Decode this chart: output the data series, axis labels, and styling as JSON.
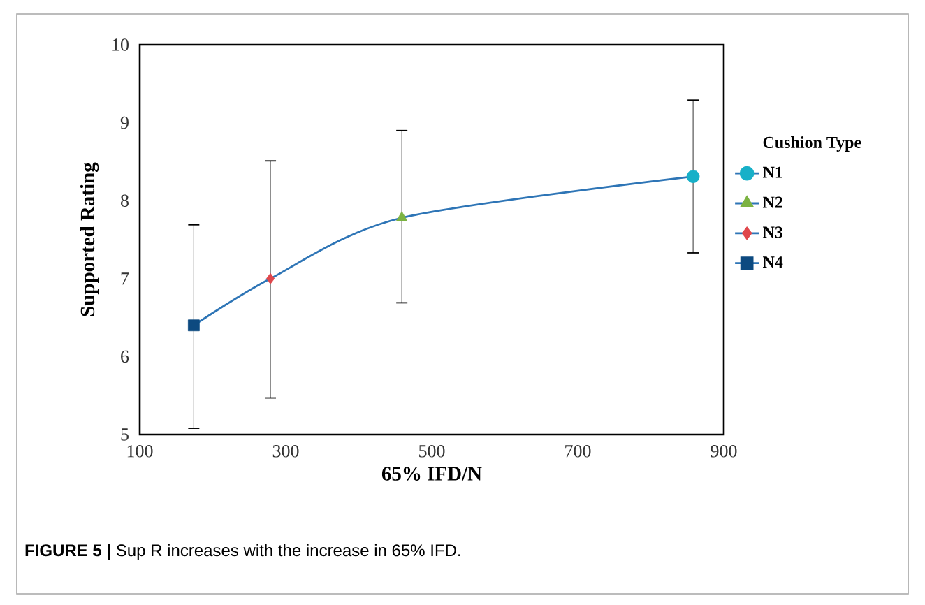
{
  "chart_data": {
    "type": "scatter",
    "xlabel": "65% IFD/N",
    "ylabel": "Supported Rating",
    "legend_title": "Cushion Type",
    "xlim": [
      100,
      900
    ],
    "xticks": [
      100,
      300,
      500,
      700,
      900
    ],
    "ylim": [
      5,
      10
    ],
    "yticks": [
      5,
      6,
      7,
      8,
      9,
      10
    ],
    "grid": false,
    "legend": "right",
    "annotations": [
      "**FIGURE 5 |** Sup R increases with the increase in 65% IFD."
    ],
    "series": [
      {
        "type": "line",
        "color": "#2e75b6",
        "x": [
          174,
          279,
          459,
          858
        ],
        "values": [
          6.4,
          7.0,
          7.78,
          8.31
        ],
        "marker": "none"
      },
      {
        "name": "N1",
        "color": "#17b0c8",
        "x": [
          858
        ],
        "values": [
          8.31
        ],
        "errors": [
          [
            7.33,
            9.29
          ]
        ],
        "marker": "circle"
      },
      {
        "name": "N2",
        "color": "#7cb342",
        "x": [
          459
        ],
        "values": [
          7.78
        ],
        "errors": [
          [
            6.69,
            8.9
          ]
        ],
        "marker": "triangle"
      },
      {
        "name": "N3",
        "color": "#e0474c",
        "x": [
          279
        ],
        "values": [
          7.0
        ],
        "errors": [
          [
            5.47,
            8.51
          ]
        ],
        "marker": "diamond"
      },
      {
        "name": "N4",
        "color": "#0d4a80",
        "x": [
          174
        ],
        "values": [
          6.4
        ],
        "errors": [
          [
            5.08,
            7.69
          ]
        ],
        "marker": "square"
      }
    ]
  }
}
